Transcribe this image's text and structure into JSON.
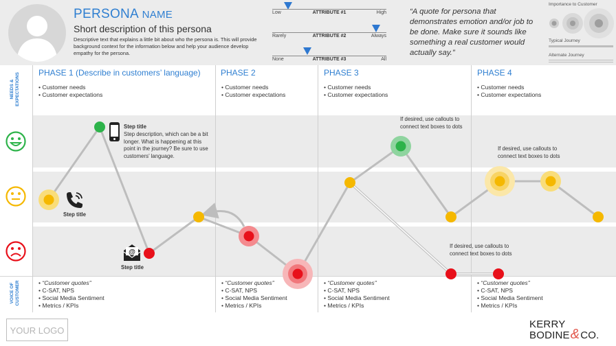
{
  "persona": {
    "name_big": "PERSONA",
    "name_small": "NAME",
    "short_description": "Short description of this persona",
    "description": "Descriptive text that explains a little bit about who the persona is. This will provide background context for the information below and help your audience develop empathy for the persona."
  },
  "attributes": [
    {
      "name": "ATTRIBUTE #1",
      "low": "Low",
      "high": "High",
      "level": 0.14
    },
    {
      "name": "ATTRIBUTE #2",
      "low": "Rarely",
      "high": "Always",
      "level": 0.91
    },
    {
      "name": "ATTRIBUTE #3",
      "low": "None",
      "high": "All",
      "level": 0.33
    }
  ],
  "quote": "“A quote for persona that demonstrates emotion and/or job to be done. Make sure it sounds like something a real customer would actually say.”",
  "legend": {
    "importance": "Importance to Customer",
    "typical": "Typical Journey",
    "alternate": "Alternate Journey"
  },
  "side_labels": {
    "needs": "NEEDS &\nEXPECTATIONS",
    "voc": "VOICE OF\nCUSTOMER"
  },
  "phases": [
    {
      "title": "PHASE 1 (Describe in customers’ language)",
      "needs": [
        "Customer needs",
        "Customer expectations"
      ],
      "voc": [
        "“Customer quotes”",
        "C-SAT, NPS",
        "Social Media Sentiment",
        "Metrics / KPIs"
      ]
    },
    {
      "title": "PHASE 2",
      "needs": [
        "Customer needs",
        "Customer expectations"
      ],
      "voc": [
        "“Customer quotes”",
        "C-SAT, NPS",
        "Social Media Sentiment",
        "Metrics / KPIs"
      ]
    },
    {
      "title": "PHASE 3",
      "needs": [
        "Customer needs",
        "Customer expectations"
      ],
      "voc": [
        "“Customer quotes”",
        "C-SAT, NPS",
        "Social Media Sentiment",
        "Metrics / KPIs"
      ]
    },
    {
      "title": "PHASE 4",
      "needs": [
        "Customer needs",
        "Customer expectations"
      ],
      "voc": [
        "“Customer quotes”",
        "C-SAT, NPS",
        "Social Media Sentiment",
        "Metrics / KPIs"
      ]
    }
  ],
  "steps": {
    "phone_step_title": "Step title",
    "phone_step_desc": "Step description, which can be a bit longer. What is happening at this point in the journey? Be sure to use customers’ language.",
    "call_step_title": "Step title",
    "mail_step_title": "Step title"
  },
  "callouts": [
    "If desired, use callouts to connect text boxes to dots",
    "If desired, use callouts to connect text boxes to dots",
    "If desired, use callouts to connect text boxes to dots"
  ],
  "colors": {
    "accent": "#2f7fd1",
    "happy": "#2db34a",
    "neutral": "#f5b800",
    "sad": "#e8101a"
  },
  "footer": {
    "logo": "YOUR LOGO",
    "brand_line1": "KERRY",
    "brand_line2": "BODINE",
    "brand_amp": "&",
    "brand_co": "CO."
  }
}
